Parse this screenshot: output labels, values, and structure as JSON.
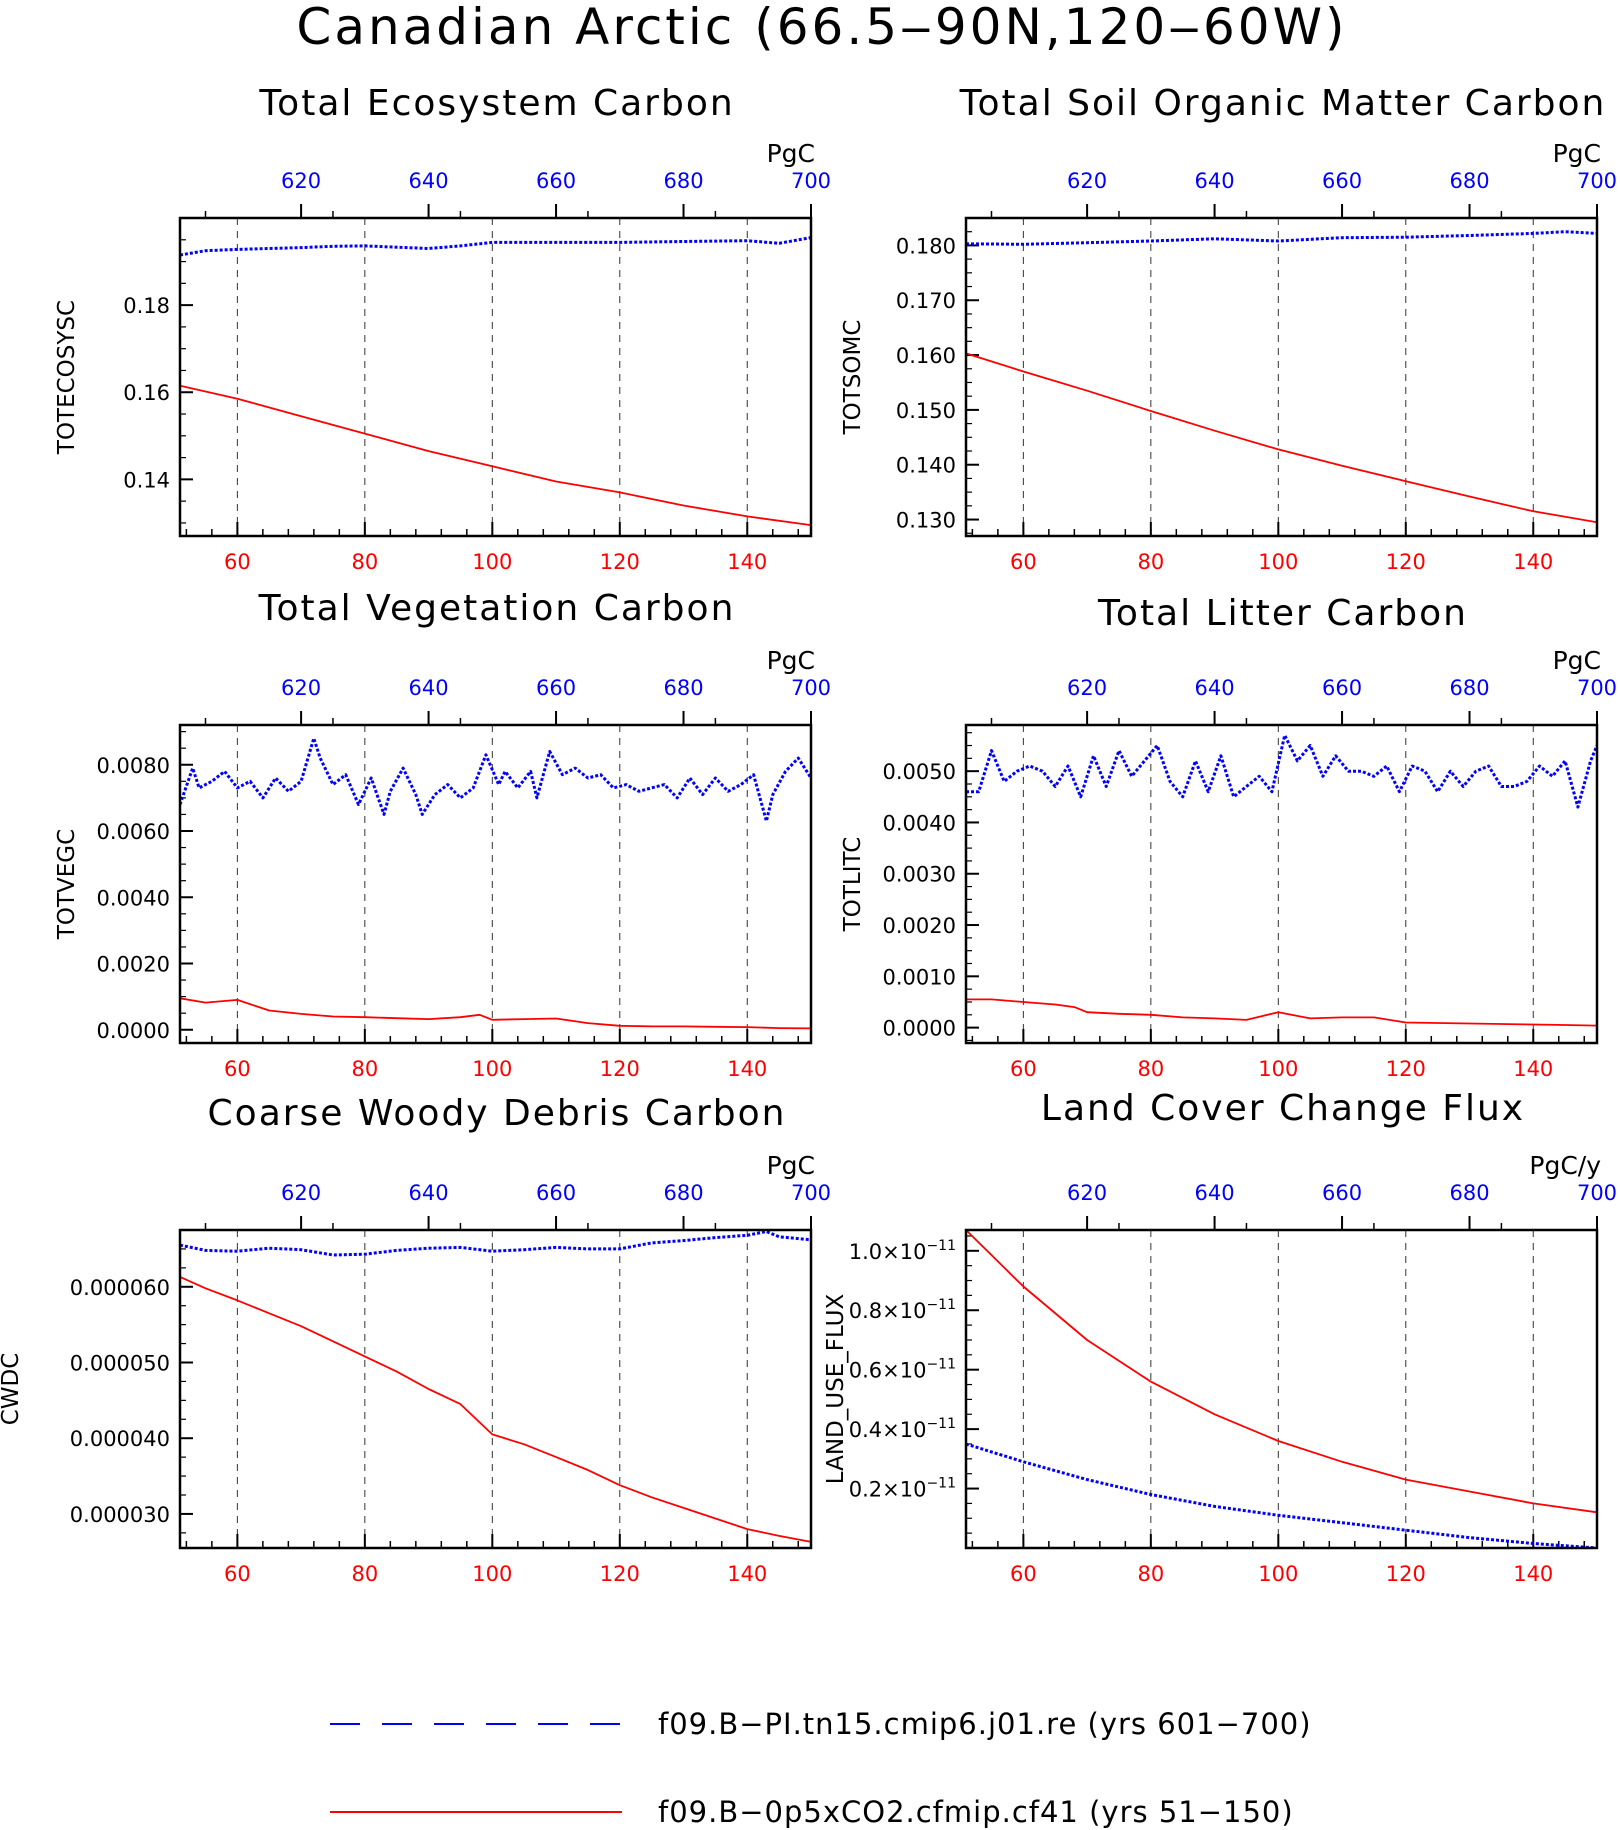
{
  "title": "Canadian Arctic (66.5‒90N,120‒60W)",
  "colors": {
    "control": "#0000ff",
    "experiment": "#ff0000",
    "axis": "#000000",
    "grid": "#333333"
  },
  "legend": [
    {
      "key": "control",
      "label": "f09.B−PI.tn15.cmip6.j01.re (yrs 601−700)",
      "style": "dashed"
    },
    {
      "key": "experiment",
      "label": "f09.B−0p5xCO2.cfmip.cf41 (yrs 51−150)",
      "style": "solid"
    }
  ],
  "chart_data": [
    {
      "type": "line",
      "title": "Total Ecosystem Carbon",
      "ylabel": "TOTECOSYSC",
      "units": "PgC",
      "x_bottom": {
        "range": [
          51,
          150
        ],
        "ticks": [
          60,
          80,
          100,
          120,
          140
        ]
      },
      "x_top": {
        "range": [
          601,
          700
        ],
        "ticks": [
          620,
          640,
          660,
          680,
          700
        ]
      },
      "ylim": [
        0.127,
        0.2
      ],
      "yticks": [
        0.14,
        0.16,
        0.18
      ],
      "ytick_labels": [
        "0.14",
        "0.16",
        "0.18"
      ],
      "series": [
        {
          "key": "control",
          "style": "dotted",
          "x": [
            601,
            605,
            610,
            620,
            625,
            630,
            640,
            645,
            650,
            660,
            670,
            680,
            690,
            695,
            700
          ],
          "y": [
            0.1915,
            0.1925,
            0.1928,
            0.1932,
            0.1935,
            0.1936,
            0.193,
            0.1936,
            0.1944,
            0.1944,
            0.1944,
            0.1946,
            0.1948,
            0.1942,
            0.1955
          ]
        },
        {
          "key": "experiment",
          "style": "solid",
          "x": [
            51,
            60,
            70,
            80,
            90,
            100,
            110,
            120,
            130,
            140,
            150
          ],
          "y": [
            0.1615,
            0.1585,
            0.1545,
            0.1505,
            0.1465,
            0.143,
            0.1395,
            0.137,
            0.134,
            0.1315,
            0.1295
          ]
        }
      ]
    },
    {
      "type": "line",
      "title": "Total Soil Organic Matter Carbon",
      "ylabel": "TOTSOMC",
      "units": "PgC",
      "x_bottom": {
        "range": [
          51,
          150
        ],
        "ticks": [
          60,
          80,
          100,
          120,
          140
        ]
      },
      "x_top": {
        "range": [
          601,
          700
        ],
        "ticks": [
          620,
          640,
          660,
          680,
          700
        ]
      },
      "ylim": [
        0.127,
        0.185
      ],
      "yticks": [
        0.13,
        0.14,
        0.15,
        0.16,
        0.17,
        0.18
      ],
      "ytick_labels": [
        "0.130",
        "0.140",
        "0.150",
        "0.160",
        "0.170",
        "0.180"
      ],
      "series": [
        {
          "key": "control",
          "style": "dotted",
          "x": [
            601,
            610,
            620,
            630,
            640,
            650,
            660,
            670,
            680,
            690,
            695,
            700
          ],
          "y": [
            0.1803,
            0.1802,
            0.1805,
            0.1808,
            0.1812,
            0.1808,
            0.1814,
            0.1815,
            0.1818,
            0.1822,
            0.1825,
            0.1822
          ]
        },
        {
          "key": "experiment",
          "style": "solid",
          "x": [
            51,
            60,
            70,
            80,
            90,
            100,
            110,
            120,
            130,
            140,
            150
          ],
          "y": [
            0.1603,
            0.157,
            0.1535,
            0.1498,
            0.1462,
            0.1428,
            0.1398,
            0.137,
            0.1342,
            0.1315,
            0.1295
          ]
        }
      ]
    },
    {
      "type": "line",
      "title": "Total Vegetation Carbon",
      "ylabel": "TOTVEGC",
      "units": "PgC",
      "x_bottom": {
        "range": [
          51,
          150
        ],
        "ticks": [
          60,
          80,
          100,
          120,
          140
        ]
      },
      "x_top": {
        "range": [
          601,
          700
        ],
        "ticks": [
          620,
          640,
          660,
          680,
          700
        ]
      },
      "ylim": [
        -0.0004,
        0.0092
      ],
      "yticks": [
        0,
        0.002,
        0.004,
        0.006,
        0.008
      ],
      "ytick_labels": [
        "0.0000",
        "0.0020",
        "0.0040",
        "0.0060",
        "0.0080"
      ],
      "series": [
        {
          "key": "control",
          "style": "dotted",
          "x": [
            601,
            603,
            604,
            606,
            608,
            610,
            612,
            614,
            616,
            618,
            620,
            622,
            623,
            625,
            627,
            629,
            631,
            633,
            634,
            636,
            638,
            639,
            641,
            643,
            645,
            647,
            649,
            651,
            652,
            654,
            656,
            657,
            659,
            661,
            663,
            665,
            667,
            669,
            671,
            673,
            675,
            677,
            679,
            681,
            683,
            685,
            687,
            689,
            691,
            693,
            694,
            696,
            698,
            700
          ],
          "y": [
            0.0068,
            0.0079,
            0.0073,
            0.0075,
            0.0078,
            0.0073,
            0.0075,
            0.007,
            0.0076,
            0.0072,
            0.0075,
            0.0088,
            0.0082,
            0.0074,
            0.0077,
            0.0068,
            0.0076,
            0.0065,
            0.0072,
            0.0079,
            0.0071,
            0.0065,
            0.0071,
            0.0074,
            0.007,
            0.0073,
            0.0083,
            0.0074,
            0.0078,
            0.0073,
            0.0078,
            0.007,
            0.0084,
            0.0077,
            0.0079,
            0.0076,
            0.0077,
            0.0073,
            0.0074,
            0.0072,
            0.0073,
            0.0074,
            0.007,
            0.0076,
            0.0071,
            0.0076,
            0.0072,
            0.0074,
            0.0077,
            0.0063,
            0.0071,
            0.0078,
            0.0082,
            0.0076
          ]
        },
        {
          "key": "experiment",
          "style": "solid",
          "x": [
            51,
            55,
            60,
            65,
            70,
            75,
            80,
            85,
            90,
            95,
            98,
            100,
            105,
            110,
            115,
            120,
            125,
            130,
            135,
            140,
            145,
            150
          ],
          "y": [
            0.00095,
            0.00082,
            0.0009,
            0.00058,
            0.00048,
            0.0004,
            0.00038,
            0.00035,
            0.00032,
            0.00038,
            0.00045,
            0.0003,
            0.00032,
            0.00034,
            0.0002,
            0.00012,
            0.0001,
            0.0001,
            9e-05,
            8e-05,
            5e-05,
            4e-05
          ]
        }
      ]
    },
    {
      "type": "line",
      "title": "Total Litter Carbon",
      "ylabel": "TOTLITC",
      "units": "PgC",
      "x_bottom": {
        "range": [
          51,
          150
        ],
        "ticks": [
          60,
          80,
          100,
          120,
          140
        ]
      },
      "x_top": {
        "range": [
          601,
          700
        ],
        "ticks": [
          620,
          640,
          660,
          680,
          700
        ]
      },
      "ylim": [
        -0.0003,
        0.0059
      ],
      "yticks": [
        0,
        0.001,
        0.002,
        0.003,
        0.004,
        0.005
      ],
      "ytick_labels": [
        "0.0000",
        "0.0010",
        "0.0020",
        "0.0030",
        "0.0040",
        "0.0050"
      ],
      "series": [
        {
          "key": "control",
          "style": "dotted",
          "x": [
            601,
            603,
            605,
            607,
            609,
            611,
            613,
            615,
            617,
            619,
            621,
            623,
            625,
            627,
            629,
            631,
            633,
            635,
            637,
            639,
            641,
            643,
            645,
            647,
            649,
            651,
            653,
            655,
            657,
            659,
            661,
            663,
            665,
            667,
            669,
            671,
            673,
            675,
            677,
            679,
            681,
            683,
            685,
            687,
            689,
            691,
            693,
            695,
            697,
            699,
            700
          ],
          "y": [
            0.0046,
            0.0046,
            0.0054,
            0.0048,
            0.005,
            0.0051,
            0.005,
            0.0047,
            0.0051,
            0.0045,
            0.0053,
            0.0047,
            0.0054,
            0.0049,
            0.0052,
            0.0055,
            0.0048,
            0.0045,
            0.0052,
            0.0046,
            0.0053,
            0.0045,
            0.0047,
            0.0049,
            0.0046,
            0.0057,
            0.0052,
            0.0055,
            0.0049,
            0.0053,
            0.005,
            0.005,
            0.0049,
            0.0051,
            0.0046,
            0.0051,
            0.005,
            0.0046,
            0.005,
            0.0047,
            0.005,
            0.0051,
            0.0047,
            0.0047,
            0.0048,
            0.0051,
            0.0049,
            0.0052,
            0.0043,
            0.0052,
            0.0055
          ]
        },
        {
          "key": "experiment",
          "style": "solid",
          "x": [
            51,
            55,
            60,
            65,
            68,
            70,
            75,
            80,
            85,
            90,
            95,
            100,
            105,
            110,
            115,
            120,
            125,
            130,
            135,
            140,
            145,
            150
          ],
          "y": [
            0.00055,
            0.00055,
            0.0005,
            0.00045,
            0.0004,
            0.0003,
            0.00027,
            0.00025,
            0.0002,
            0.00018,
            0.00015,
            0.0003,
            0.00018,
            0.0002,
            0.0002,
            0.0001,
            9e-05,
            8e-05,
            7e-05,
            6e-05,
            5e-05,
            4e-05
          ]
        }
      ]
    },
    {
      "type": "line",
      "title": "Coarse Woody Debris Carbon",
      "ylabel": "CWDC",
      "units": "PgC",
      "x_bottom": {
        "range": [
          51,
          150
        ],
        "ticks": [
          60,
          80,
          100,
          120,
          140
        ]
      },
      "x_top": {
        "range": [
          601,
          700
        ],
        "ticks": [
          620,
          640,
          660,
          680,
          700
        ]
      },
      "ylim": [
        2.55e-05,
        6.75e-05
      ],
      "yticks": [
        3e-05,
        4e-05,
        5e-05,
        6e-05
      ],
      "ytick_labels": [
        "0.000030",
        "0.000040",
        "0.000050",
        "0.000060"
      ],
      "series": [
        {
          "key": "control",
          "style": "dotted",
          "x": [
            601,
            605,
            610,
            615,
            620,
            625,
            630,
            635,
            640,
            645,
            650,
            655,
            660,
            665,
            670,
            675,
            680,
            685,
            690,
            693,
            695,
            700
          ],
          "y": [
            6.55e-05,
            6.48e-05,
            6.47e-05,
            6.51e-05,
            6.49e-05,
            6.42e-05,
            6.43e-05,
            6.48e-05,
            6.51e-05,
            6.52e-05,
            6.47e-05,
            6.49e-05,
            6.52e-05,
            6.5e-05,
            6.5e-05,
            6.58e-05,
            6.61e-05,
            6.65e-05,
            6.68e-05,
            6.73e-05,
            6.66e-05,
            6.62e-05
          ]
        },
        {
          "key": "experiment",
          "style": "solid",
          "x": [
            51,
            55,
            60,
            65,
            70,
            75,
            80,
            85,
            90,
            95,
            100,
            105,
            110,
            115,
            120,
            125,
            130,
            135,
            140,
            145,
            150
          ],
          "y": [
            6.13e-05,
            5.98e-05,
            5.82e-05,
            5.65e-05,
            5.48e-05,
            5.28e-05,
            5.08e-05,
            4.88e-05,
            4.65e-05,
            4.45e-05,
            4.05e-05,
            3.92e-05,
            3.75e-05,
            3.58e-05,
            3.38e-05,
            3.22e-05,
            3.08e-05,
            2.94e-05,
            2.8e-05,
            2.71e-05,
            2.63e-05
          ]
        }
      ]
    },
    {
      "type": "line",
      "title": "Land Cover Change Flux",
      "ylabel": "LAND_USE_FLUX",
      "units": "PgC/y",
      "x_bottom": {
        "range": [
          51,
          150
        ],
        "ticks": [
          60,
          80,
          100,
          120,
          140
        ]
      },
      "x_top": {
        "range": [
          601,
          700
        ],
        "ticks": [
          620,
          640,
          660,
          680,
          700
        ]
      },
      "ylim": [
        0.0,
        1.07
      ],
      "yticks": [
        0.2,
        0.4,
        0.6,
        0.8,
        1.0
      ],
      "ytick_labels": [
        "0.2",
        "0.4",
        "0.6",
        "0.8",
        "1.0"
      ],
      "ytick_exponent": "−11",
      "series": [
        {
          "key": "control",
          "style": "dotted",
          "x": [
            601,
            610,
            620,
            630,
            640,
            650,
            660,
            670,
            680,
            690,
            700
          ],
          "y": [
            0.35,
            0.29,
            0.23,
            0.18,
            0.14,
            0.11,
            0.085,
            0.06,
            0.035,
            0.015,
            0.0
          ]
        },
        {
          "key": "experiment",
          "style": "solid",
          "x": [
            51,
            60,
            70,
            80,
            90,
            100,
            110,
            120,
            130,
            140,
            150
          ],
          "y": [
            1.07,
            0.88,
            0.7,
            0.56,
            0.45,
            0.36,
            0.29,
            0.23,
            0.19,
            0.15,
            0.12
          ]
        }
      ]
    }
  ]
}
